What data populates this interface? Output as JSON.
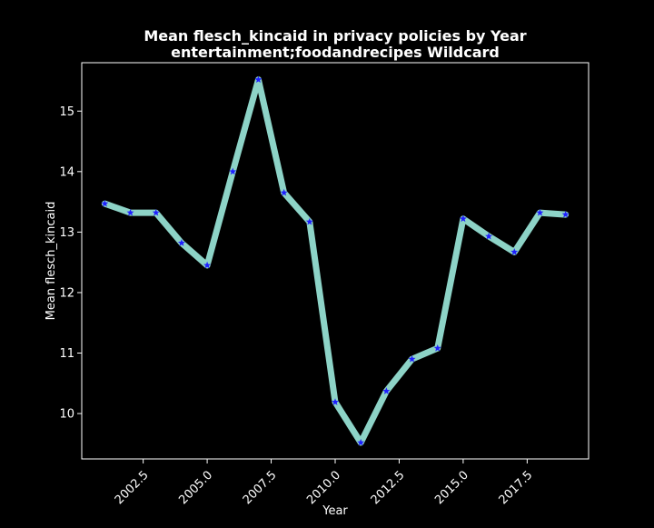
{
  "chart_data": {
    "type": "line",
    "title_line1": "Mean flesch_kincaid in privacy policies by Year",
    "title_line2": "entertainment;foodandrecipes Wildcard",
    "xlabel": "Year",
    "ylabel": "Mean flesch_kincaid",
    "xlim": [
      2000.1,
      2019.9
    ],
    "ylim": [
      9.25,
      15.8
    ],
    "x_ticks": [
      2002.5,
      2005.0,
      2007.5,
      2010.0,
      2012.5,
      2015.0,
      2017.5
    ],
    "x_tick_labels": [
      "2002.5",
      "2005.0",
      "2007.5",
      "2010.0",
      "2012.5",
      "2015.0",
      "2017.5"
    ],
    "y_ticks": [
      10,
      11,
      12,
      13,
      14,
      15
    ],
    "y_tick_labels": [
      "10",
      "11",
      "12",
      "13",
      "14",
      "15"
    ],
    "grid": false,
    "line_color": "#8dd3c7",
    "marker_color": "#1f1fff",
    "marker": "star",
    "series": [
      {
        "x": [
          2001,
          2002,
          2003,
          2004,
          2005,
          2006,
          2007,
          2008,
          2009,
          2010,
          2011,
          2012,
          2013,
          2014,
          2015,
          2016,
          2017,
          2018,
          2019
        ],
        "values": [
          13.47,
          13.32,
          13.32,
          12.82,
          12.45,
          14.0,
          15.52,
          13.65,
          13.17,
          10.19,
          9.52,
          10.37,
          10.9,
          11.08,
          13.22,
          12.93,
          12.67,
          13.32,
          13.29
        ]
      }
    ]
  }
}
